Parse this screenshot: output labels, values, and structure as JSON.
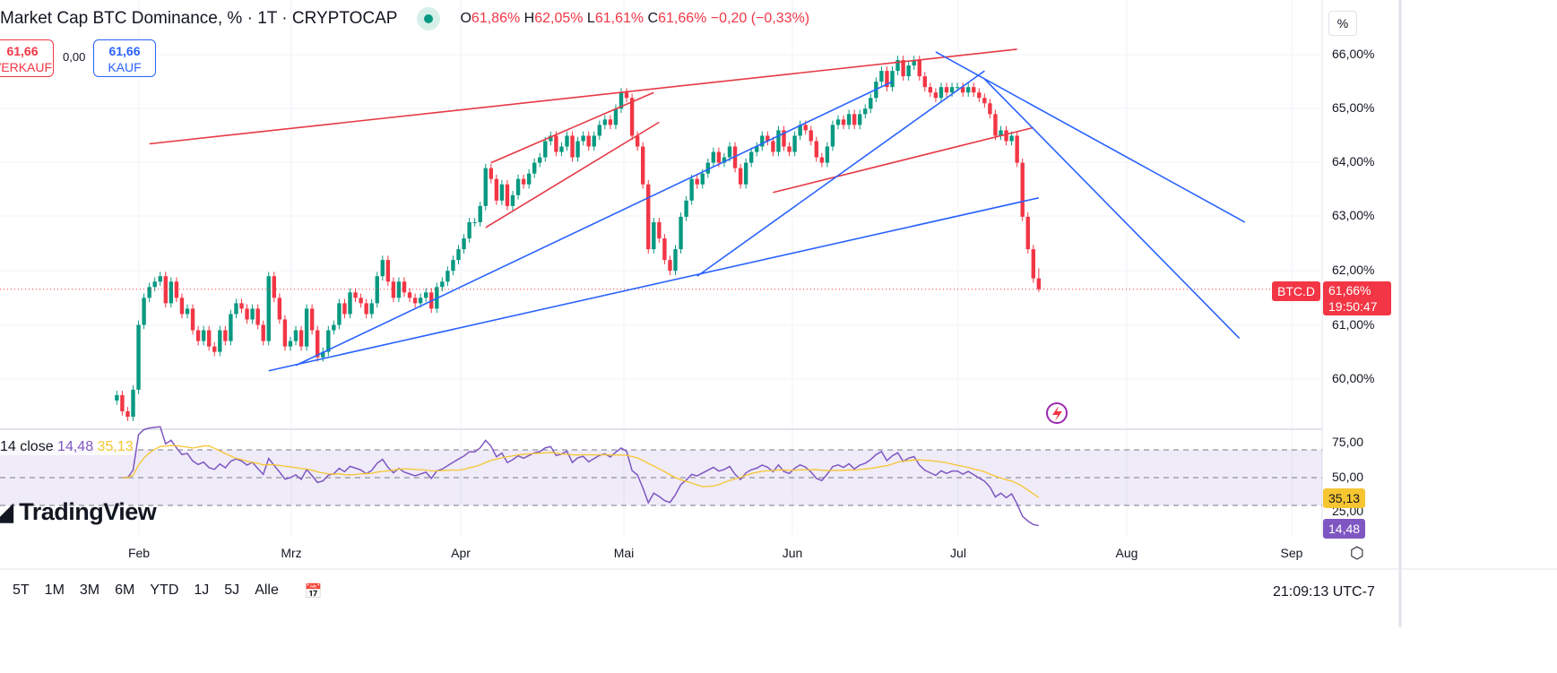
{
  "header": {
    "title": "Market Cap BTC Dominance, % · 1T · CRYPTOCAP",
    "open": "61,86%",
    "high": "62,05%",
    "low": "61,61%",
    "close": "61,66%",
    "change": "−0,20 (−0,33%)",
    "o": "O",
    "h": "H",
    "l": "L",
    "c": "C"
  },
  "trade": {
    "sell_price": "61,66",
    "sell_label": "VERKAUF",
    "spread": "0,00",
    "buy_price": "61,66",
    "buy_label": "KAUF"
  },
  "price_axis": {
    "unit": "%",
    "ticks": [
      "66,00%",
      "65,00%",
      "64,00%",
      "63,00%",
      "62,00%",
      "61,00%",
      "60,00%"
    ],
    "symbol_label": "BTC.D",
    "last_price": "61,66%",
    "countdown": "19:50:47"
  },
  "rsi": {
    "label": "14 close",
    "value": "14,48",
    "ma_value": "35,13",
    "ticks": [
      "75,00",
      "50,00",
      "25,00"
    ]
  },
  "time_axis": {
    "ticks": [
      "Feb",
      "Mrz",
      "Apr",
      "Mai",
      "Jun",
      "Jul",
      "Aug",
      "Sep"
    ]
  },
  "branding": {
    "logo": "TradingView"
  },
  "toolbar": {
    "ranges": [
      "5T",
      "1M",
      "3M",
      "6M",
      "YTD",
      "1J",
      "5J",
      "Alle"
    ],
    "clock": "21:09:13 UTC-7"
  },
  "colors": {
    "up": "#089981",
    "down": "#f23645",
    "rsi": "#7e57c2",
    "rsi_ma": "#f7c531",
    "trend_red": "#e53945",
    "trend_blue": "#2962ff"
  },
  "chart_data": {
    "type": "candlestick",
    "symbol": "BTC.D",
    "interval": "1 day",
    "start_date": "2024-01-28",
    "closes": [
      59.7,
      59.4,
      59.3,
      59.8,
      61.0,
      61.5,
      61.7,
      61.8,
      61.9,
      61.4,
      61.8,
      61.5,
      61.2,
      61.3,
      60.9,
      60.7,
      60.9,
      60.6,
      60.5,
      60.9,
      60.7,
      61.2,
      61.4,
      61.3,
      61.1,
      61.3,
      61.0,
      60.7,
      61.9,
      61.5,
      61.1,
      60.6,
      60.7,
      60.9,
      60.6,
      61.3,
      60.9,
      60.4,
      60.5,
      60.9,
      61.0,
      61.4,
      61.2,
      61.6,
      61.5,
      61.4,
      61.2,
      61.4,
      61.9,
      62.2,
      61.8,
      61.5,
      61.8,
      61.6,
      61.5,
      61.4,
      61.5,
      61.6,
      61.3,
      61.7,
      61.8,
      62.0,
      62.2,
      62.4,
      62.6,
      62.9,
      62.9,
      63.2,
      63.9,
      63.7,
      63.3,
      63.6,
      63.2,
      63.4,
      63.7,
      63.6,
      63.8,
      64.0,
      64.1,
      64.4,
      64.5,
      64.2,
      64.3,
      64.5,
      64.1,
      64.4,
      64.5,
      64.3,
      64.5,
      64.7,
      64.8,
      64.7,
      65.0,
      65.3,
      65.2,
      64.5,
      64.3,
      63.6,
      62.4,
      62.9,
      62.6,
      62.2,
      62.0,
      62.4,
      63.0,
      63.3,
      63.7,
      63.6,
      63.8,
      64.0,
      64.2,
      64.0,
      64.1,
      64.3,
      63.9,
      63.6,
      64.0,
      64.2,
      64.3,
      64.5,
      64.4,
      64.2,
      64.6,
      64.3,
      64.2,
      64.5,
      64.7,
      64.6,
      64.4,
      64.1,
      64.0,
      64.3,
      64.7,
      64.8,
      64.7,
      64.9,
      64.7,
      64.9,
      65.0,
      65.2,
      65.5,
      65.7,
      65.4,
      65.7,
      65.9,
      65.6,
      65.8,
      65.9,
      65.6,
      65.4,
      65.3,
      65.2,
      65.4,
      65.3,
      65.4,
      65.4,
      65.3,
      65.4,
      65.3,
      65.2,
      65.1,
      64.9,
      64.5,
      64.6,
      64.4,
      64.5,
      64.0,
      63.0,
      62.4,
      61.86,
      61.66
    ],
    "last_bar": {
      "open": 61.86,
      "high": 62.05,
      "low": 61.61,
      "close": 61.66
    },
    "ylim": [
      59.3,
      66.5
    ],
    "rsi_period": 14,
    "rsi_levels": [
      70,
      50,
      30
    ],
    "trendlines": [
      {
        "color": "red",
        "from": [
          "2024-02-03",
          64.35
        ],
        "to": [
          "2024-07-12",
          66.1
        ]
      },
      {
        "color": "red",
        "from": [
          "2024-04-06",
          64.0
        ],
        "to": [
          "2024-05-06",
          65.3
        ]
      },
      {
        "color": "red",
        "from": [
          "2024-04-05",
          62.8
        ],
        "to": [
          "2024-05-07",
          64.75
        ]
      },
      {
        "color": "red",
        "from": [
          "2024-05-28",
          63.45
        ],
        "to": [
          "2024-07-15",
          64.65
        ]
      },
      {
        "color": "blue",
        "from": [
          "2024-02-25",
          60.15
        ],
        "to": [
          "2024-07-16",
          63.35
        ]
      },
      {
        "color": "blue",
        "from": [
          "2024-03-01",
          60.25
        ],
        "to": [
          "2024-06-19",
          65.5
        ]
      },
      {
        "color": "blue",
        "from": [
          "2024-05-14",
          61.9
        ],
        "to": [
          "2024-07-06",
          65.7
        ]
      },
      {
        "color": "blue",
        "from": [
          "2024-06-27",
          66.05
        ],
        "to": [
          "2024-08-23",
          62.9
        ]
      },
      {
        "color": "blue",
        "from": [
          "2024-07-06",
          65.55
        ],
        "to": [
          "2024-08-22",
          60.75
        ]
      }
    ]
  }
}
